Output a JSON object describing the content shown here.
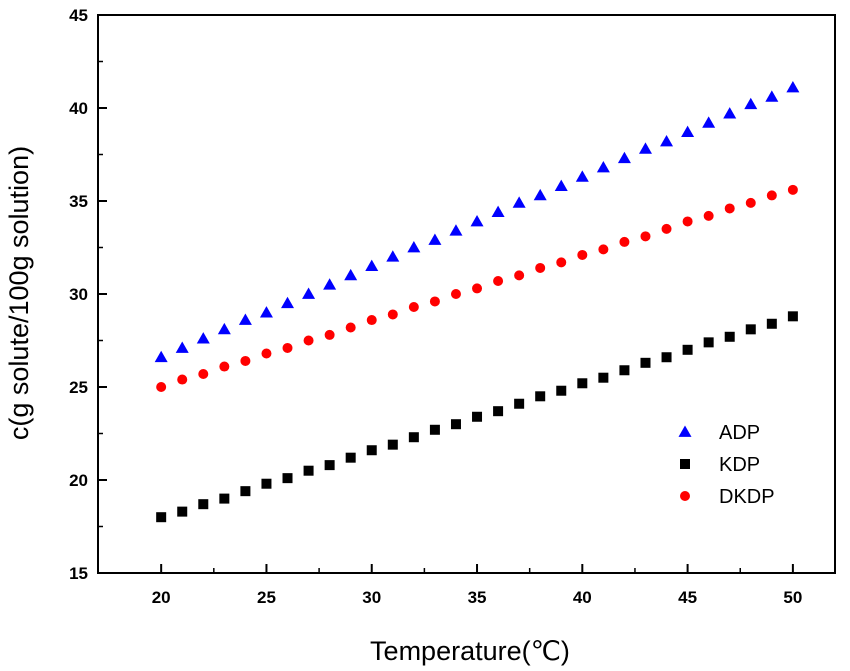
{
  "chart_data": {
    "type": "scatter",
    "xlabel": "Temperature(℃)",
    "ylabel": "c(g solute/100g solution)",
    "xlim": [
      17,
      52
    ],
    "ylim": [
      15,
      45
    ],
    "xticks": [
      20,
      25,
      30,
      35,
      40,
      45,
      50
    ],
    "yticks": [
      15,
      20,
      25,
      30,
      35,
      40,
      45
    ],
    "grid": false,
    "legend_position": "lower-right",
    "series": [
      {
        "name": "ADP",
        "marker": "triangle",
        "color": "#0000ff",
        "x": [
          20,
          21,
          22,
          23,
          24,
          25,
          26,
          27,
          28,
          29,
          30,
          31,
          32,
          33,
          34,
          35,
          36,
          37,
          38,
          39,
          40,
          41,
          42,
          43,
          44,
          45,
          46,
          47,
          48,
          49,
          50
        ],
        "y": [
          26.6,
          27.1,
          27.6,
          28.1,
          28.6,
          29.0,
          29.5,
          30.0,
          30.5,
          31.0,
          31.5,
          32.0,
          32.5,
          32.9,
          33.4,
          33.9,
          34.4,
          34.9,
          35.3,
          35.8,
          36.3,
          36.8,
          37.3,
          37.8,
          38.2,
          38.7,
          39.2,
          39.7,
          40.2,
          40.6,
          41.1
        ]
      },
      {
        "name": "KDP",
        "marker": "square",
        "color": "#000000",
        "x": [
          20,
          21,
          22,
          23,
          24,
          25,
          26,
          27,
          28,
          29,
          30,
          31,
          32,
          33,
          34,
          35,
          36,
          37,
          38,
          39,
          40,
          41,
          42,
          43,
          44,
          45,
          46,
          47,
          48,
          49,
          50
        ],
        "y": [
          18.0,
          18.3,
          18.7,
          19.0,
          19.4,
          19.8,
          20.1,
          20.5,
          20.8,
          21.2,
          21.6,
          21.9,
          22.3,
          22.7,
          23.0,
          23.4,
          23.7,
          24.1,
          24.5,
          24.8,
          25.2,
          25.5,
          25.9,
          26.3,
          26.6,
          27.0,
          27.4,
          27.7,
          28.1,
          28.4,
          28.8
        ]
      },
      {
        "name": "DKDP",
        "marker": "circle",
        "color": "#ff0000",
        "x": [
          20,
          21,
          22,
          23,
          24,
          25,
          26,
          27,
          28,
          29,
          30,
          31,
          32,
          33,
          34,
          35,
          36,
          37,
          38,
          39,
          40,
          41,
          42,
          43,
          44,
          45,
          46,
          47,
          48,
          49,
          50
        ],
        "y": [
          25.0,
          25.4,
          25.7,
          26.1,
          26.4,
          26.8,
          27.1,
          27.5,
          27.8,
          28.2,
          28.6,
          28.9,
          29.3,
          29.6,
          30.0,
          30.3,
          30.7,
          31.0,
          31.4,
          31.7,
          32.1,
          32.4,
          32.8,
          33.1,
          33.5,
          33.9,
          34.2,
          34.6,
          34.9,
          35.3,
          35.6
        ]
      }
    ]
  }
}
